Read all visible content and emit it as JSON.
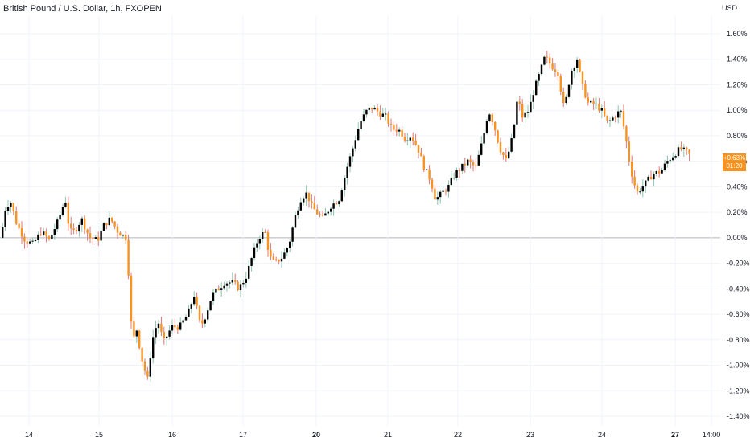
{
  "header": {
    "title": "British Pound / U.S. Dollar, 1h, FXOPEN",
    "unit": "USD"
  },
  "last_price": {
    "value": "+0.63%",
    "countdown": "01:20"
  },
  "colors": {
    "up": "#000000",
    "down": "#f7931e",
    "grid": "#f0f3fa",
    "zero_line": "#b2b5be",
    "wick_up": "#8bc4ac",
    "wick_down": "#e57373"
  },
  "chart_data": {
    "type": "candlestick",
    "title": "British Pound / U.S. Dollar, 1h, FXOPEN",
    "ylabel": "USD",
    "ylim": [
      -1.4,
      1.7
    ],
    "grid": true,
    "y_ticks": [
      "1.60%",
      "1.40%",
      "1.20%",
      "1.00%",
      "0.80%",
      "0.60%",
      "0.40%",
      "0.20%",
      "0.00%",
      "-0.20%",
      "-0.40%",
      "-0.60%",
      "-0.80%",
      "-1.00%",
      "-1.20%",
      "-1.40%"
    ],
    "x_ticks": [
      {
        "label": "14",
        "bold": false
      },
      {
        "label": "15",
        "bold": false
      },
      {
        "label": "16",
        "bold": false
      },
      {
        "label": "17",
        "bold": false
      },
      {
        "label": "20",
        "bold": true
      },
      {
        "label": "21",
        "bold": false
      },
      {
        "label": "22",
        "bold": false
      },
      {
        "label": "23",
        "bold": false
      },
      {
        "label": "24",
        "bold": false
      },
      {
        "label": "27",
        "bold": true
      },
      {
        "label": "14:00",
        "bold": false
      }
    ],
    "path": [
      [
        0,
        0.0
      ],
      [
        6,
        0.25
      ],
      [
        12,
        0.28
      ],
      [
        20,
        0.1
      ],
      [
        30,
        -0.02
      ],
      [
        40,
        -0.05
      ],
      [
        50,
        0.05
      ],
      [
        60,
        -0.02
      ],
      [
        70,
        0.12
      ],
      [
        80,
        0.3
      ],
      [
        85,
        0.05
      ],
      [
        92,
        0.05
      ],
      [
        100,
        0.15
      ],
      [
        110,
        0.0
      ],
      [
        120,
        -0.02
      ],
      [
        128,
        0.1
      ],
      [
        136,
        0.15
      ],
      [
        145,
        0.05
      ],
      [
        155,
        0.0
      ],
      [
        160,
        -0.4
      ],
      [
        163,
        -0.85
      ],
      [
        168,
        -0.7
      ],
      [
        175,
        -0.95
      ],
      [
        182,
        -1.12
      ],
      [
        188,
        -0.8
      ],
      [
        195,
        -0.65
      ],
      [
        202,
        -0.82
      ],
      [
        212,
        -0.7
      ],
      [
        222,
        -0.7
      ],
      [
        232,
        -0.6
      ],
      [
        240,
        -0.45
      ],
      [
        248,
        -0.7
      ],
      [
        255,
        -0.6
      ],
      [
        262,
        -0.45
      ],
      [
        270,
        -0.4
      ],
      [
        278,
        -0.35
      ],
      [
        288,
        -0.35
      ],
      [
        296,
        -0.4
      ],
      [
        305,
        -0.3
      ],
      [
        312,
        -0.15
      ],
      [
        320,
        0.0
      ],
      [
        328,
        0.05
      ],
      [
        334,
        -0.15
      ],
      [
        340,
        -0.2
      ],
      [
        350,
        -0.15
      ],
      [
        358,
        -0.05
      ],
      [
        365,
        0.15
      ],
      [
        372,
        0.3
      ],
      [
        380,
        0.35
      ],
      [
        386,
        0.25
      ],
      [
        392,
        0.2
      ],
      [
        400,
        0.15
      ],
      [
        410,
        0.25
      ],
      [
        420,
        0.3
      ],
      [
        430,
        0.55
      ],
      [
        438,
        0.72
      ],
      [
        446,
        0.9
      ],
      [
        455,
        1.0
      ],
      [
        462,
        1.02
      ],
      [
        470,
        0.98
      ],
      [
        478,
        0.95
      ],
      [
        486,
        0.85
      ],
      [
        494,
        0.85
      ],
      [
        502,
        0.78
      ],
      [
        510,
        0.8
      ],
      [
        518,
        0.7
      ],
      [
        526,
        0.55
      ],
      [
        534,
        0.45
      ],
      [
        540,
        0.3
      ],
      [
        548,
        0.35
      ],
      [
        556,
        0.4
      ],
      [
        564,
        0.5
      ],
      [
        572,
        0.55
      ],
      [
        580,
        0.6
      ],
      [
        590,
        0.55
      ],
      [
        598,
        0.75
      ],
      [
        606,
        1.0
      ],
      [
        612,
        0.9
      ],
      [
        620,
        0.7
      ],
      [
        628,
        0.6
      ],
      [
        636,
        0.8
      ],
      [
        642,
        1.1
      ],
      [
        648,
        0.95
      ],
      [
        656,
        1.0
      ],
      [
        662,
        1.15
      ],
      [
        670,
        1.3
      ],
      [
        676,
        1.42
      ],
      [
        684,
        1.35
      ],
      [
        692,
        1.3
      ],
      [
        700,
        1.0
      ],
      [
        708,
        1.3
      ],
      [
        716,
        1.4
      ],
      [
        722,
        1.2
      ],
      [
        730,
        1.05
      ],
      [
        738,
        1.05
      ],
      [
        746,
        1.0
      ],
      [
        754,
        0.9
      ],
      [
        762,
        0.95
      ],
      [
        770,
        1.0
      ],
      [
        776,
        0.8
      ],
      [
        782,
        0.55
      ],
      [
        790,
        0.35
      ],
      [
        800,
        0.42
      ],
      [
        810,
        0.5
      ],
      [
        820,
        0.52
      ],
      [
        828,
        0.6
      ],
      [
        836,
        0.65
      ],
      [
        844,
        0.7
      ],
      [
        852,
        0.67
      ],
      [
        858,
        0.63
      ]
    ]
  }
}
